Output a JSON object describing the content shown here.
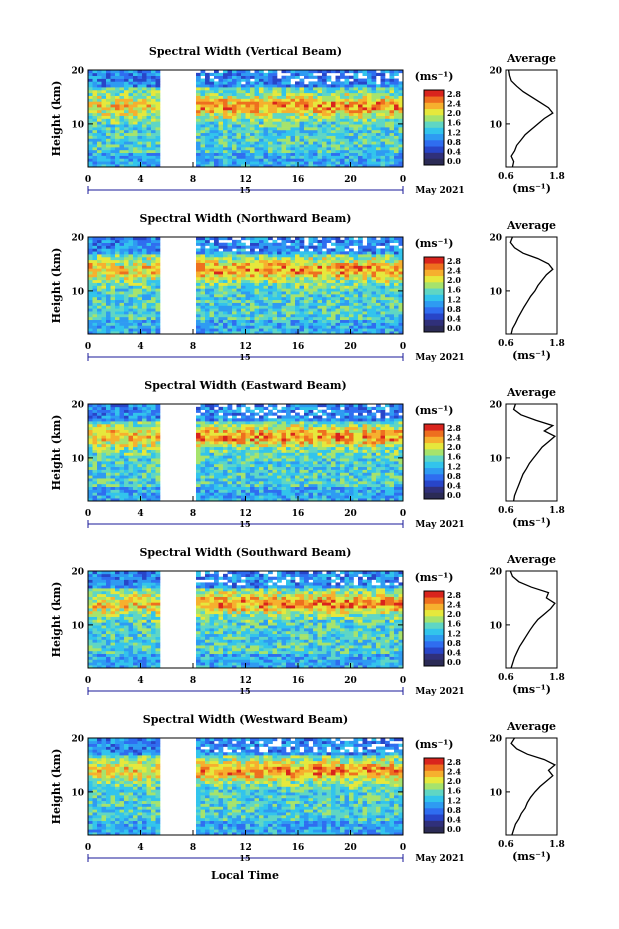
{
  "figure": {
    "xlabel": "Local Time",
    "date_label": "May 2021",
    "colorbar_unit": "(ms⁻¹)",
    "average_title": "Average",
    "average_xlabel": "(ms⁻¹)"
  },
  "colormap": [
    "#30307a",
    "#2845c8",
    "#2f6df0",
    "#2e9bf2",
    "#32c4ec",
    "#5fd6c4",
    "#a6e36c",
    "#e6e83c",
    "#f6b02e",
    "#ee6f1f",
    "#d9241d"
  ],
  "chart_data": [
    {
      "type": "heatmap",
      "title": "Spectral Width (Vertical Beam)",
      "ylabel": "Height (km)",
      "xlim": [
        0,
        24
      ],
      "ylim": [
        2,
        20
      ],
      "xticks": [
        "0",
        "4",
        "8",
        "12",
        "16",
        "20",
        "0"
      ],
      "yticks": [
        "10",
        "20"
      ],
      "day_label": "15",
      "colorbar_ticks": [
        "2.8",
        "2.4",
        "2.0",
        "1.6",
        "1.2",
        "0.8",
        "0.4",
        "0.0"
      ],
      "data_gap": [
        5.6,
        8.2
      ],
      "average": {
        "xlim": [
          0.6,
          1.8
        ],
        "xticks": [
          "0.6",
          "1.8"
        ],
        "yticks": [
          "10",
          "20"
        ],
        "height": [
          2,
          3,
          4,
          5,
          6,
          7,
          8,
          9,
          10,
          11,
          12,
          13,
          14,
          15,
          16,
          17,
          18,
          19,
          20
        ],
        "value": [
          0.75,
          0.78,
          0.72,
          0.8,
          0.85,
          0.95,
          1.05,
          1.2,
          1.35,
          1.5,
          1.7,
          1.6,
          1.4,
          1.2,
          1.0,
          0.85,
          0.72,
          0.68,
          0.66
        ]
      }
    },
    {
      "type": "heatmap",
      "title": "Spectral Width (Northward Beam)",
      "ylabel": "Height (km)",
      "xlim": [
        0,
        24
      ],
      "ylim": [
        2,
        20
      ],
      "xticks": [
        "0",
        "4",
        "8",
        "12",
        "16",
        "20",
        "0"
      ],
      "yticks": [
        "10",
        "20"
      ],
      "day_label": "15",
      "colorbar_ticks": [
        "2.8",
        "2.4",
        "2.0",
        "1.6",
        "1.2",
        "0.8",
        "0.4",
        "0.0"
      ],
      "data_gap": [
        5.6,
        8.1
      ],
      "average": {
        "xlim": [
          0.6,
          1.8
        ],
        "xticks": [
          "0.6",
          "1.8"
        ],
        "yticks": [
          "10",
          "20"
        ],
        "height": [
          2,
          3,
          4,
          5,
          6,
          7,
          8,
          9,
          10,
          11,
          12,
          13,
          14,
          15,
          16,
          17,
          18,
          19,
          20
        ],
        "value": [
          0.72,
          0.75,
          0.82,
          0.88,
          0.95,
          1.02,
          1.1,
          1.18,
          1.28,
          1.35,
          1.45,
          1.55,
          1.7,
          1.6,
          1.35,
          1.0,
          0.8,
          0.7,
          0.75
        ]
      }
    },
    {
      "type": "heatmap",
      "title": "Spectral Width (Eastward Beam)",
      "ylabel": "Height (km)",
      "xlim": [
        0,
        24
      ],
      "ylim": [
        2,
        20
      ],
      "xticks": [
        "0",
        "4",
        "8",
        "12",
        "16",
        "20",
        "0"
      ],
      "yticks": [
        "10",
        "20"
      ],
      "day_label": "15",
      "colorbar_ticks": [
        "2.8",
        "2.4",
        "2.0",
        "1.6",
        "1.2",
        "0.8",
        "0.4",
        "0.0"
      ],
      "data_gap": [
        5.6,
        8.1
      ],
      "average": {
        "xlim": [
          0.6,
          1.8
        ],
        "xticks": [
          "0.6",
          "1.8"
        ],
        "yticks": [
          "10",
          "20"
        ],
        "height": [
          2,
          3,
          4,
          5,
          6,
          7,
          8,
          9,
          10,
          11,
          12,
          13,
          14,
          15,
          16,
          17,
          18,
          19,
          20
        ],
        "value": [
          0.78,
          0.8,
          0.85,
          0.9,
          0.95,
          1.0,
          1.08,
          1.15,
          1.25,
          1.35,
          1.45,
          1.6,
          1.75,
          1.5,
          1.7,
          1.3,
          0.95,
          0.78,
          0.82
        ]
      }
    },
    {
      "type": "heatmap",
      "title": "Spectral Width (Southward Beam)",
      "ylabel": "Height (km)",
      "xlim": [
        0,
        24
      ],
      "ylim": [
        2,
        20
      ],
      "xticks": [
        "0",
        "4",
        "8",
        "12",
        "16",
        "20",
        "0"
      ],
      "yticks": [
        "10",
        "20"
      ],
      "day_label": "15",
      "colorbar_ticks": [
        "2.8",
        "2.4",
        "2.0",
        "1.6",
        "1.2",
        "0.8",
        "0.4",
        "0.0"
      ],
      "data_gap": [
        5.6,
        8.1
      ],
      "average": {
        "xlim": [
          0.6,
          1.8
        ],
        "xticks": [
          "0.6",
          "1.8"
        ],
        "yticks": [
          "10",
          "20"
        ],
        "height": [
          2,
          3,
          4,
          5,
          6,
          7,
          8,
          9,
          10,
          11,
          12,
          13,
          14,
          15,
          16,
          17,
          18,
          19,
          20
        ],
        "value": [
          0.72,
          0.76,
          0.8,
          0.86,
          0.92,
          1.0,
          1.08,
          1.16,
          1.25,
          1.35,
          1.5,
          1.65,
          1.75,
          1.55,
          1.6,
          1.2,
          0.9,
          0.75,
          0.7
        ]
      }
    },
    {
      "type": "heatmap",
      "title": "Spectral Width (Westward Beam)",
      "ylabel": "Height (km)",
      "xlim": [
        0,
        24
      ],
      "ylim": [
        2,
        20
      ],
      "xticks": [
        "0",
        "4",
        "8",
        "12",
        "16",
        "20",
        "0"
      ],
      "yticks": [
        "10",
        "20"
      ],
      "day_label": "15",
      "colorbar_ticks": [
        "2.8",
        "2.4",
        "2.0",
        "1.6",
        "1.2",
        "0.8",
        "0.4",
        "0.0"
      ],
      "data_gap": [
        5.6,
        8.1
      ],
      "average": {
        "xlim": [
          0.6,
          1.8
        ],
        "xticks": [
          "0.6",
          "1.8"
        ],
        "yticks": [
          "10",
          "20"
        ],
        "height": [
          2,
          3,
          4,
          5,
          6,
          7,
          8,
          9,
          10,
          11,
          12,
          13,
          14,
          15,
          16,
          17,
          18,
          19,
          20
        ],
        "value": [
          0.74,
          0.78,
          0.82,
          0.9,
          0.96,
          1.05,
          1.1,
          1.18,
          1.28,
          1.4,
          1.55,
          1.7,
          1.6,
          1.75,
          1.5,
          1.1,
          0.85,
          0.72,
          0.8
        ]
      }
    }
  ]
}
